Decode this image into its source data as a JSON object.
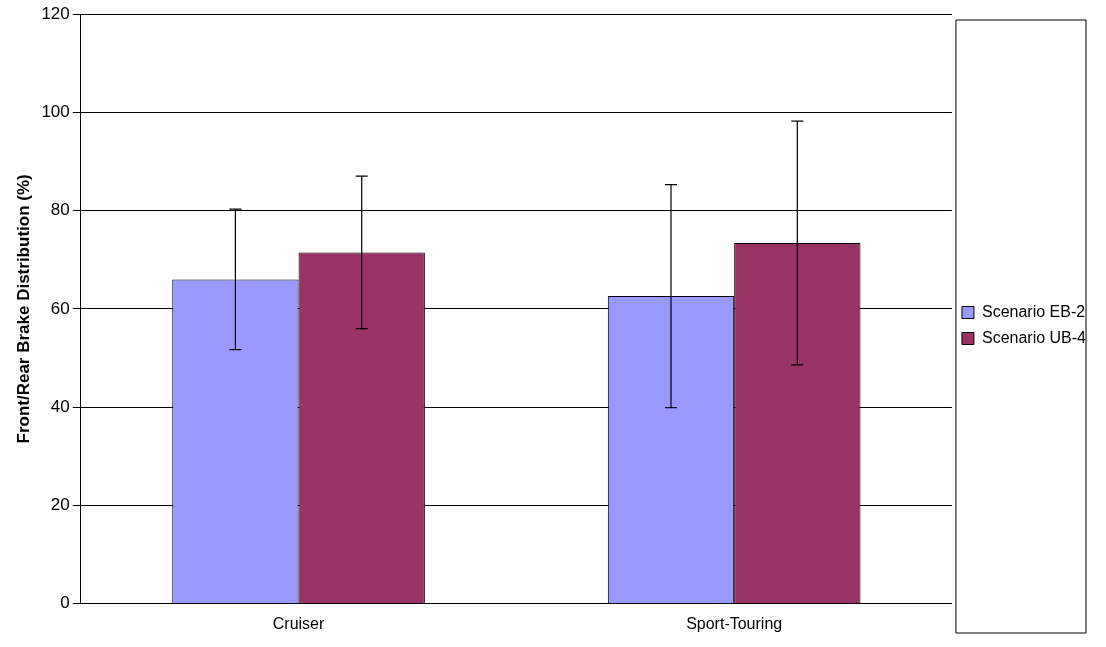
{
  "chart_data": {
    "type": "bar",
    "ylabel": "Front/Rear Brake Distribution (%)",
    "categories": [
      "Cruiser",
      "Sport-Touring"
    ],
    "series": [
      {
        "name": "Scenario EB-2",
        "color": "#9999ff",
        "values": [
          66,
          62.6
        ],
        "errors": [
          14.3,
          22.7
        ]
      },
      {
        "name": "Scenario UB-4",
        "color": "#993366",
        "values": [
          71.5,
          73.4
        ],
        "errors": [
          15.5,
          24.8
        ]
      }
    ],
    "ylim": [
      0,
      120
    ],
    "yticks": [
      0,
      20,
      40,
      60,
      80,
      100,
      120
    ],
    "grid": "y",
    "legend": "right"
  }
}
